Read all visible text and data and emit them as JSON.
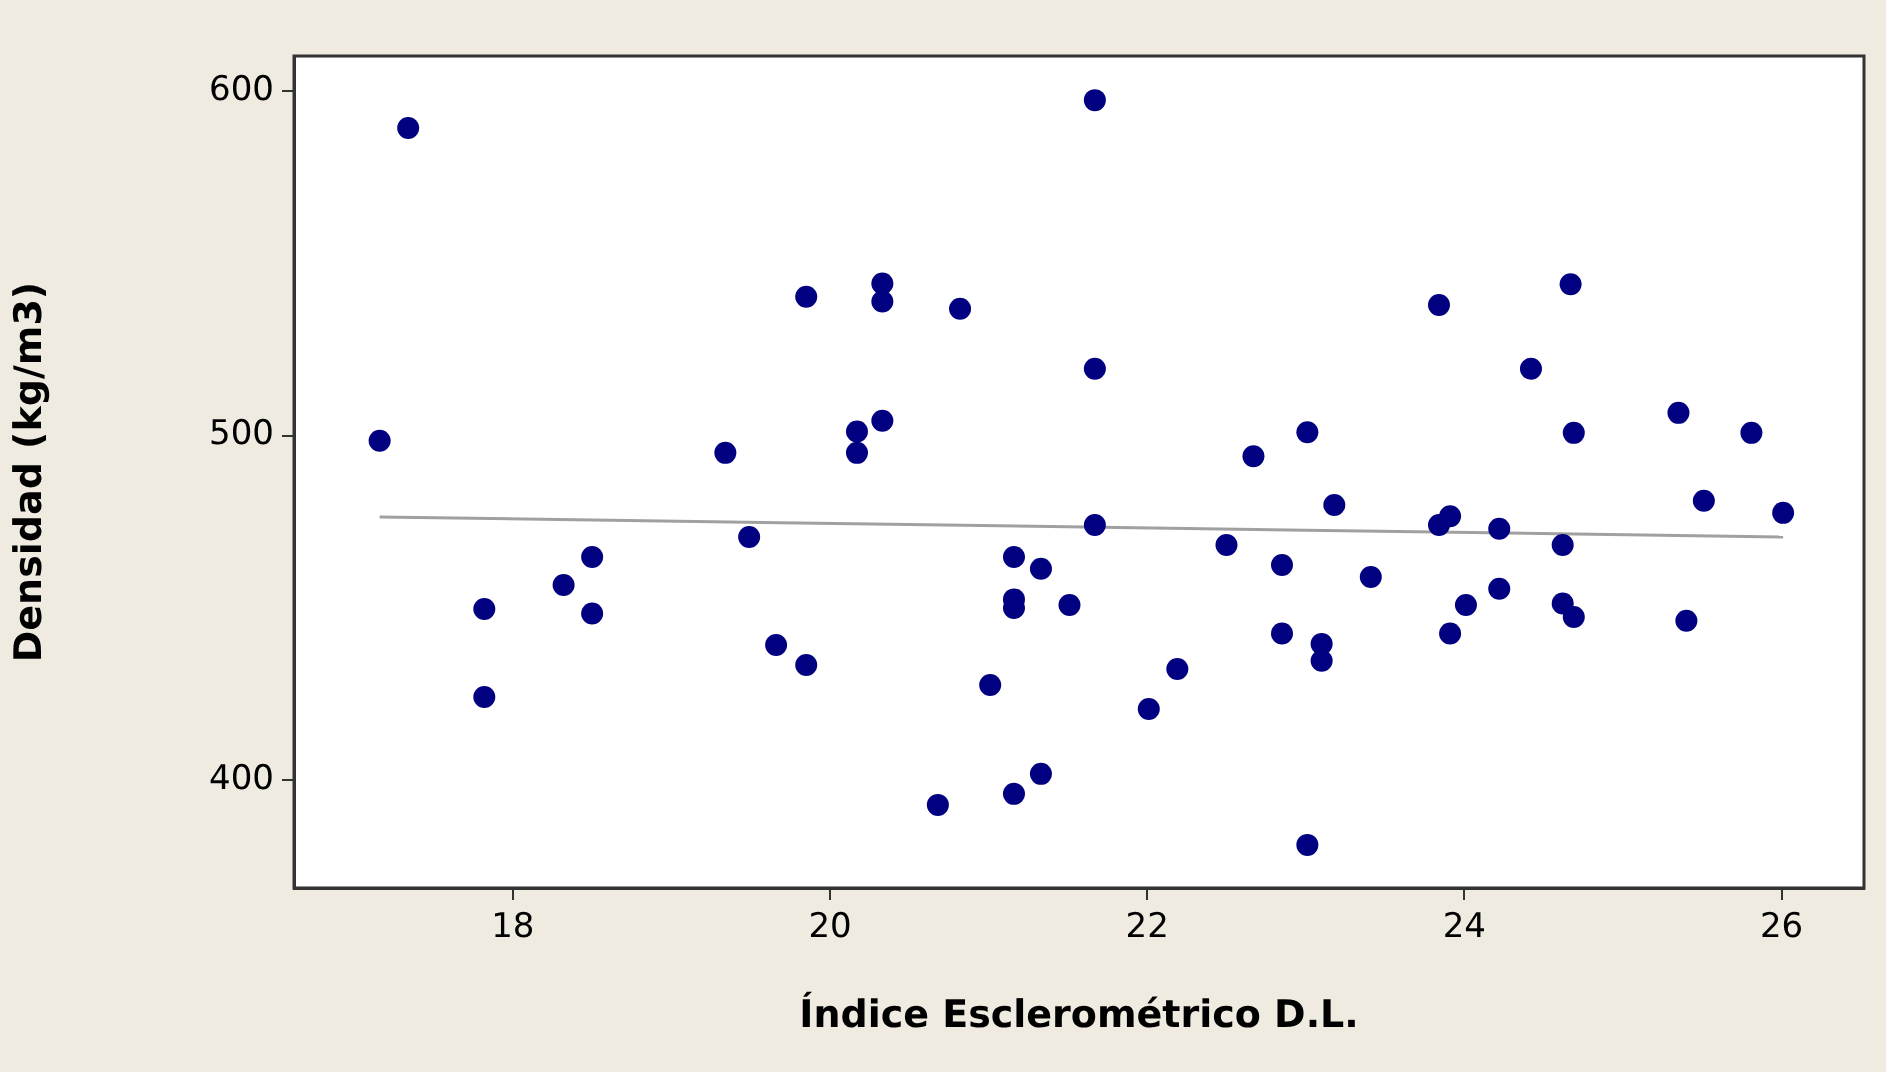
{
  "chart_data": {
    "type": "scatter",
    "xlabel": "Índice Esclerométrico D.L.",
    "ylabel": "Densidad (kg/m3)",
    "xlim": [
      16.62,
      26.52
    ],
    "xticks": [
      18,
      20,
      22,
      24,
      26
    ],
    "ylim": [
      368.8,
      610.1
    ],
    "yticks": [
      400,
      500,
      600
    ],
    "grid": false,
    "legend": false,
    "marker": "circle",
    "series": [
      {
        "color": "#000080",
        "x": [
          17.34,
          17.16,
          17.82,
          17.82,
          18.32,
          18.5,
          18.5,
          19.34,
          19.49,
          19.66,
          19.85,
          19.85,
          20.17,
          20.17,
          20.33,
          20.33,
          20.33,
          20.82,
          21.01,
          20.68,
          21.16,
          21.33,
          21.16,
          21.33,
          21.16,
          21.16,
          21.51,
          21.67,
          21.67,
          21.67,
          22.01,
          22.19,
          22.5,
          22.67,
          22.85,
          22.85,
          23.01,
          23.01,
          23.1,
          23.1,
          23.18,
          23.41,
          23.84,
          23.84,
          23.91,
          23.91,
          24.01,
          24.22,
          24.22,
          24.42,
          24.67,
          24.62,
          24.69,
          24.62,
          24.69,
          25.35,
          25.4,
          25.51,
          25.81,
          26.01
        ],
        "values": [
          589.2,
          498.5,
          449.7,
          424.2,
          456.7,
          464.8,
          448.4,
          495,
          470.6,
          439.3,
          433.5,
          540.3,
          501.2,
          495,
          504.3,
          544.1,
          538.9,
          536.8,
          427.7,
          392.9,
          396.1,
          401.9,
          464.8,
          461.4,
          452.5,
          450,
          450.9,
          597.3,
          519.4,
          474.1,
          420.7,
          432.3,
          468.3,
          494,
          462.5,
          442.6,
          501,
          381.3,
          439.6,
          434.7,
          479.9,
          459,
          537.9,
          474.1,
          476.6,
          442.6,
          450.9,
          473,
          455.6,
          519.4,
          543.9,
          468.3,
          500.8,
          451.3,
          447.4,
          506.6,
          446.3,
          481.1,
          500.8,
          477.6
        ]
      },
      {
        "type": "line",
        "color": "#a0a0a0",
        "marker": "none",
        "x": [
          17.16,
          26.01
        ],
        "values": [
          476.4,
          470.6
        ]
      }
    ]
  }
}
